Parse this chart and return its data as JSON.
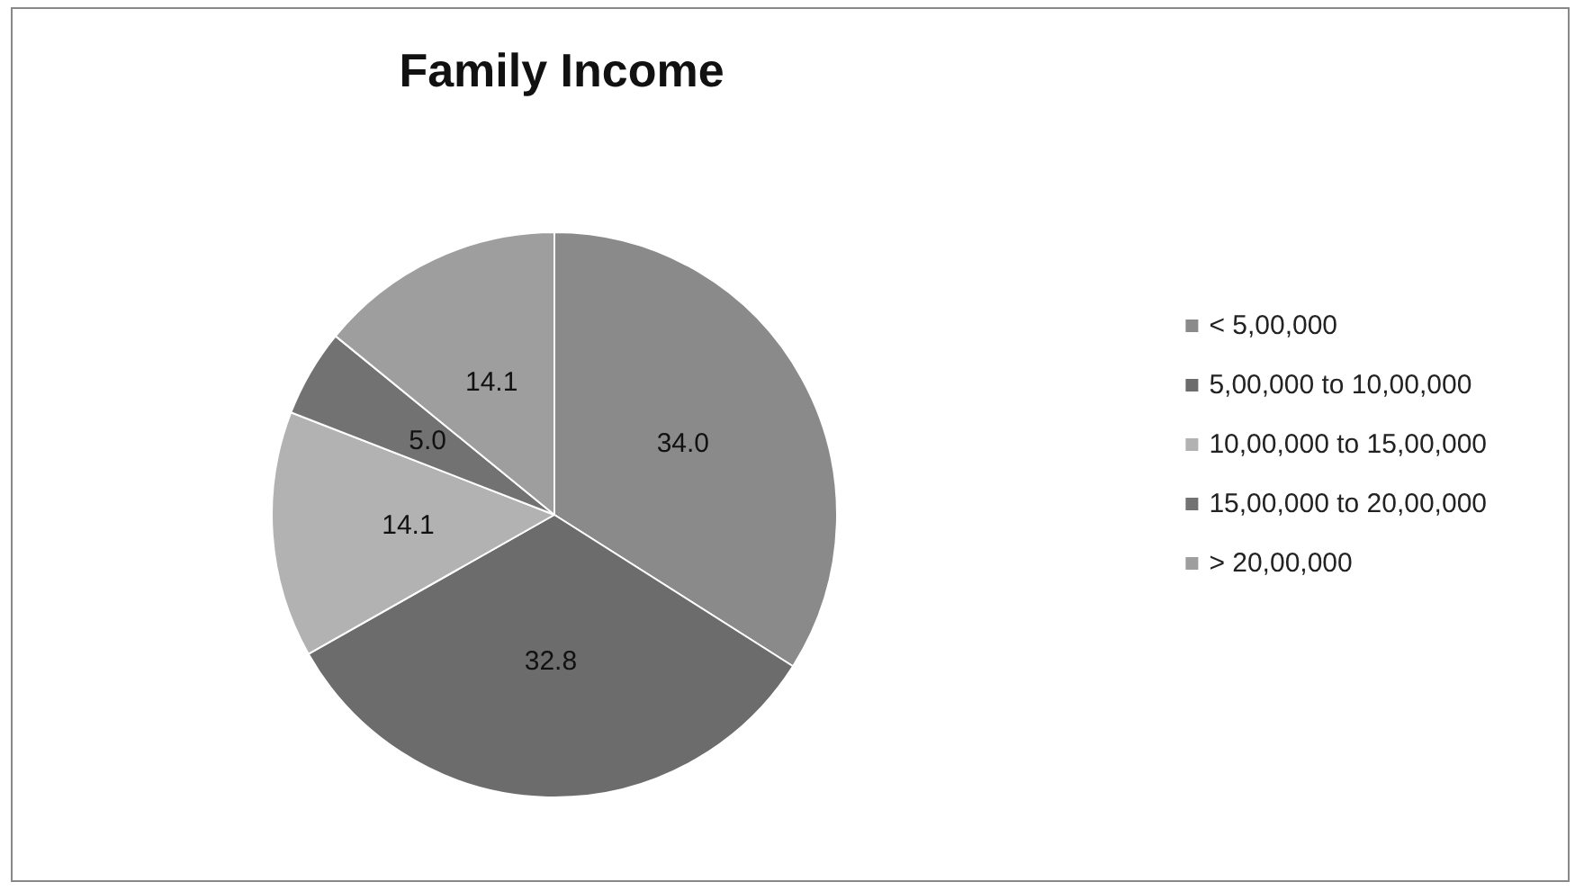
{
  "chart_data": {
    "type": "pie",
    "title": "Family Income",
    "categories": [
      "< 5,00,000",
      "5,00,000 to 10,00,000",
      "10,00,000 to 15,00,000",
      "15,00,000 to 20,00,000",
      "> 20,00,000"
    ],
    "values": [
      34.0,
      32.8,
      14.1,
      5.0,
      14.1
    ],
    "colors": [
      "#8a8a8a",
      "#6c6c6c",
      "#b2b2b2",
      "#727272",
      "#9e9e9e"
    ],
    "value_labels": [
      "34.0",
      "32.8",
      "14.1",
      "5.0",
      "14.1"
    ],
    "legend": "right"
  }
}
